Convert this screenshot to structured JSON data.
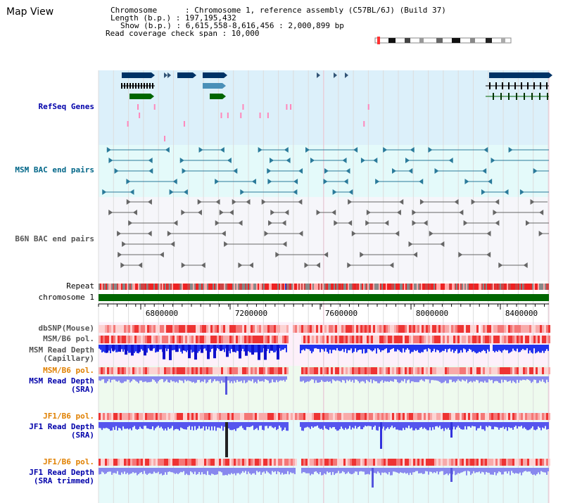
{
  "view": {
    "title": "Map View",
    "info": {
      "chromosome": "Chromosome      : Chromosome 1, reference assembly (C57BL/6J) (Build 37)",
      "length": "Length (b.p.) : 197,195,432",
      "show": "Show (b.p.) : 6,615,558-8,616,456 : 2,000,899 bp",
      "span": "Read coverage check span : 10,000"
    },
    "tracks": {
      "refseq": "RefSeq Genes",
      "msm_bac": "MSM BAC end pairs",
      "b6n_bac": "B6N BAC end pairs",
      "repeat": "Repeat",
      "chromosome": "chromosome 1",
      "dbsnp": "dbSNP(Mouse)",
      "msm_pol1": "MSM/B6 pol.",
      "msm_depth_cap_1": "MSM Read Depth",
      "msm_depth_cap_2": "(Capillary)",
      "msm_pol2": "MSM/B6 pol.",
      "msm_depth_sra_1": "MSM Read Depth",
      "msm_depth_sra_2": "(SRA)",
      "jf1_pol1": "JF1/B6 pol.",
      "jf1_depth_sra_1": "JF1 Read Depth",
      "jf1_depth_sra_2": "(SRA)",
      "jf1_pol2": "JF1/B6 pol.",
      "jf1_depth_trim_1": "JF1 Read Depth",
      "jf1_depth_trim_2": "(SRA trimmed)"
    },
    "axis": {
      "ticks": [
        "6800000",
        "7200000",
        "7600000",
        "8000000",
        "8400000"
      ]
    },
    "colors": {
      "label_blue": "#0000aa",
      "label_teal": "#006688",
      "label_gray": "#555555",
      "label_orange": "#e08000",
      "gene_navy": "#003366",
      "gene_green": "#006600",
      "chrom_green": "#006600"
    }
  }
}
